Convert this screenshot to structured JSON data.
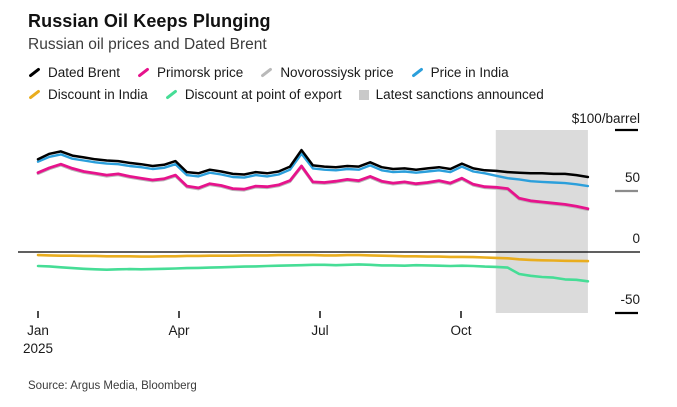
{
  "header": {
    "title": "Russian Oil Keeps Plunging",
    "subtitle": "Russian oil prices and Dated Brent"
  },
  "legend": {
    "rows": [
      [
        {
          "label": "Dated Brent",
          "color": "#000000",
          "marker": "line"
        },
        {
          "label": "Primorsk price",
          "color": "#e6138c",
          "marker": "line"
        },
        {
          "label": "Novorossiysk price",
          "color": "#b9b9b9",
          "marker": "line"
        },
        {
          "label": "Price in India",
          "color": "#2b9fdb",
          "marker": "line"
        }
      ],
      [
        {
          "label": "Discount in India",
          "color": "#e9ad1e",
          "marker": "line"
        },
        {
          "label": "Discount at point of export",
          "color": "#46dd96",
          "marker": "line"
        },
        {
          "label": "Latest sanctions announced",
          "color": "#c9c9c9",
          "marker": "square"
        }
      ]
    ]
  },
  "source": {
    "text": "Source: Argus Media, Bloomberg"
  },
  "chart_data": {
    "type": "line",
    "title": "Russian Oil Keeps Plunging",
    "subtitle": "Russian oil prices and Dated Brent",
    "unit_label": "$100/barrel",
    "ylim": [
      -50,
      100
    ],
    "x_unit": "months since Jan 2025",
    "x_range": [
      0,
      11.7
    ],
    "grid": false,
    "legend_position": "top",
    "y_axis": {
      "unit_label": "$100/barrel",
      "ticks": [
        {
          "value": 100,
          "label": "",
          "dash": true,
          "dash_color": "#000000"
        },
        {
          "value": 50,
          "label": "50",
          "dash": true,
          "dash_color": "#8c8c8c"
        },
        {
          "value": 0,
          "label": "0",
          "dash": false,
          "zero_line": true
        },
        {
          "value": -50,
          "label": "-50",
          "dash": true,
          "dash_color": "#000000"
        }
      ]
    },
    "x_axis": {
      "ticks": [
        {
          "month": 0,
          "label": "Jan",
          "sublabel": "2025"
        },
        {
          "month": 3,
          "label": "Apr",
          "sublabel": ""
        },
        {
          "month": 6,
          "label": "Jul",
          "sublabel": ""
        },
        {
          "month": 9,
          "label": "Oct",
          "sublabel": ""
        }
      ]
    },
    "shaded_region": {
      "label": "Latest sanctions announced",
      "x_start_month": 9.74,
      "x_end_month": 11.7,
      "color": "#dbdbdb"
    },
    "series": [
      {
        "name": "Novorossiysk price",
        "color": "#b9b9b9",
        "width": 2.4,
        "values": [
          64,
          68,
          71,
          67.5,
          65,
          63.5,
          62,
          63,
          61,
          59.5,
          58,
          59,
          62,
          53,
          51.5,
          55,
          53.5,
          51,
          50.5,
          53,
          52.5,
          54,
          57.5,
          69.5,
          56.5,
          56,
          57,
          58.5,
          57.5,
          61,
          57,
          55.5,
          56.5,
          55,
          56,
          57.5,
          55.5,
          59.5,
          54.5,
          52.5,
          52,
          51,
          43,
          41,
          40,
          39,
          38,
          36.5,
          34.5
        ]
      },
      {
        "name": "Price in India",
        "color": "#2b9fdb",
        "width": 2.4,
        "values": [
          74,
          78,
          80,
          76.5,
          75,
          73.5,
          72.5,
          72,
          70.5,
          69.5,
          68,
          69,
          72,
          63,
          62,
          65,
          63.5,
          61.5,
          61,
          63,
          62,
          63.5,
          67.5,
          80.5,
          68.5,
          67.5,
          67,
          68,
          67.5,
          71,
          67,
          65.5,
          66,
          65,
          66,
          67,
          65.5,
          70,
          66,
          64.5,
          62.5,
          60.5,
          59.5,
          58,
          57.5,
          57,
          56.5,
          55.5,
          54
        ]
      },
      {
        "name": "Dated Brent",
        "color": "#000000",
        "width": 2.5,
        "values": [
          76,
          80.5,
          82.5,
          79,
          77.5,
          76,
          75,
          74.5,
          73,
          72,
          70.5,
          71.5,
          74.5,
          65.5,
          64.5,
          67.5,
          66,
          64,
          63.5,
          65.5,
          64.5,
          66,
          70,
          83.5,
          71,
          70,
          69.5,
          70.5,
          70,
          73.5,
          69.5,
          68,
          68.5,
          67.5,
          68.5,
          69.5,
          68,
          72.5,
          68.5,
          67,
          66.5,
          65.5,
          65,
          64.5,
          64.5,
          64,
          64,
          63,
          61.5
        ]
      },
      {
        "name": "Primorsk price",
        "color": "#e6138c",
        "width": 2.8,
        "values": [
          65,
          69,
          72,
          68.5,
          66,
          64.5,
          63,
          64,
          62,
          60.5,
          59,
          60,
          63,
          54,
          52.5,
          56,
          54.5,
          52,
          51.5,
          54,
          53.5,
          55,
          58.5,
          70.5,
          57.5,
          57,
          58,
          59.5,
          58.5,
          62,
          58,
          56.5,
          57.5,
          56,
          57,
          58.5,
          56.5,
          60.5,
          55.5,
          53.5,
          53,
          52,
          44,
          42,
          41,
          40,
          39,
          37.5,
          35.5
        ]
      },
      {
        "name": "Discount in India",
        "color": "#e9ad1e",
        "width": 2.6,
        "values": [
          -2.5,
          -2.8,
          -3,
          -3,
          -3.2,
          -3.2,
          -3.5,
          -3.5,
          -3.5,
          -3.8,
          -3.8,
          -3.5,
          -3.5,
          -3.2,
          -3.2,
          -3,
          -3,
          -3,
          -2.8,
          -2.8,
          -2.8,
          -2.5,
          -2.5,
          -2.5,
          -2.5,
          -2.8,
          -2.8,
          -2.5,
          -2.5,
          -2.8,
          -3,
          -3.2,
          -3.5,
          -3.5,
          -3.8,
          -3.8,
          -4,
          -4,
          -4.2,
          -4.5,
          -4.8,
          -5.2,
          -6,
          -6.5,
          -6.8,
          -7,
          -7.2,
          -7.3,
          -7.5
        ]
      },
      {
        "name": "Discount at point of export",
        "color": "#46dd96",
        "width": 2.6,
        "values": [
          -11.5,
          -11.8,
          -12.5,
          -13.2,
          -13.8,
          -14.2,
          -14.5,
          -14.2,
          -14,
          -14.2,
          -14,
          -13.8,
          -13.5,
          -13.2,
          -13,
          -12.8,
          -12.5,
          -12.2,
          -12,
          -11.8,
          -11.5,
          -11.2,
          -11,
          -10.8,
          -10.5,
          -10.5,
          -10.8,
          -10.5,
          -10.2,
          -10.5,
          -11,
          -11,
          -11.2,
          -10.8,
          -11,
          -11.2,
          -11.5,
          -11.2,
          -11.5,
          -12,
          -12.2,
          -12.8,
          -18,
          -19.5,
          -20.5,
          -21,
          -22.5,
          -22.8,
          -24
        ]
      }
    ]
  }
}
